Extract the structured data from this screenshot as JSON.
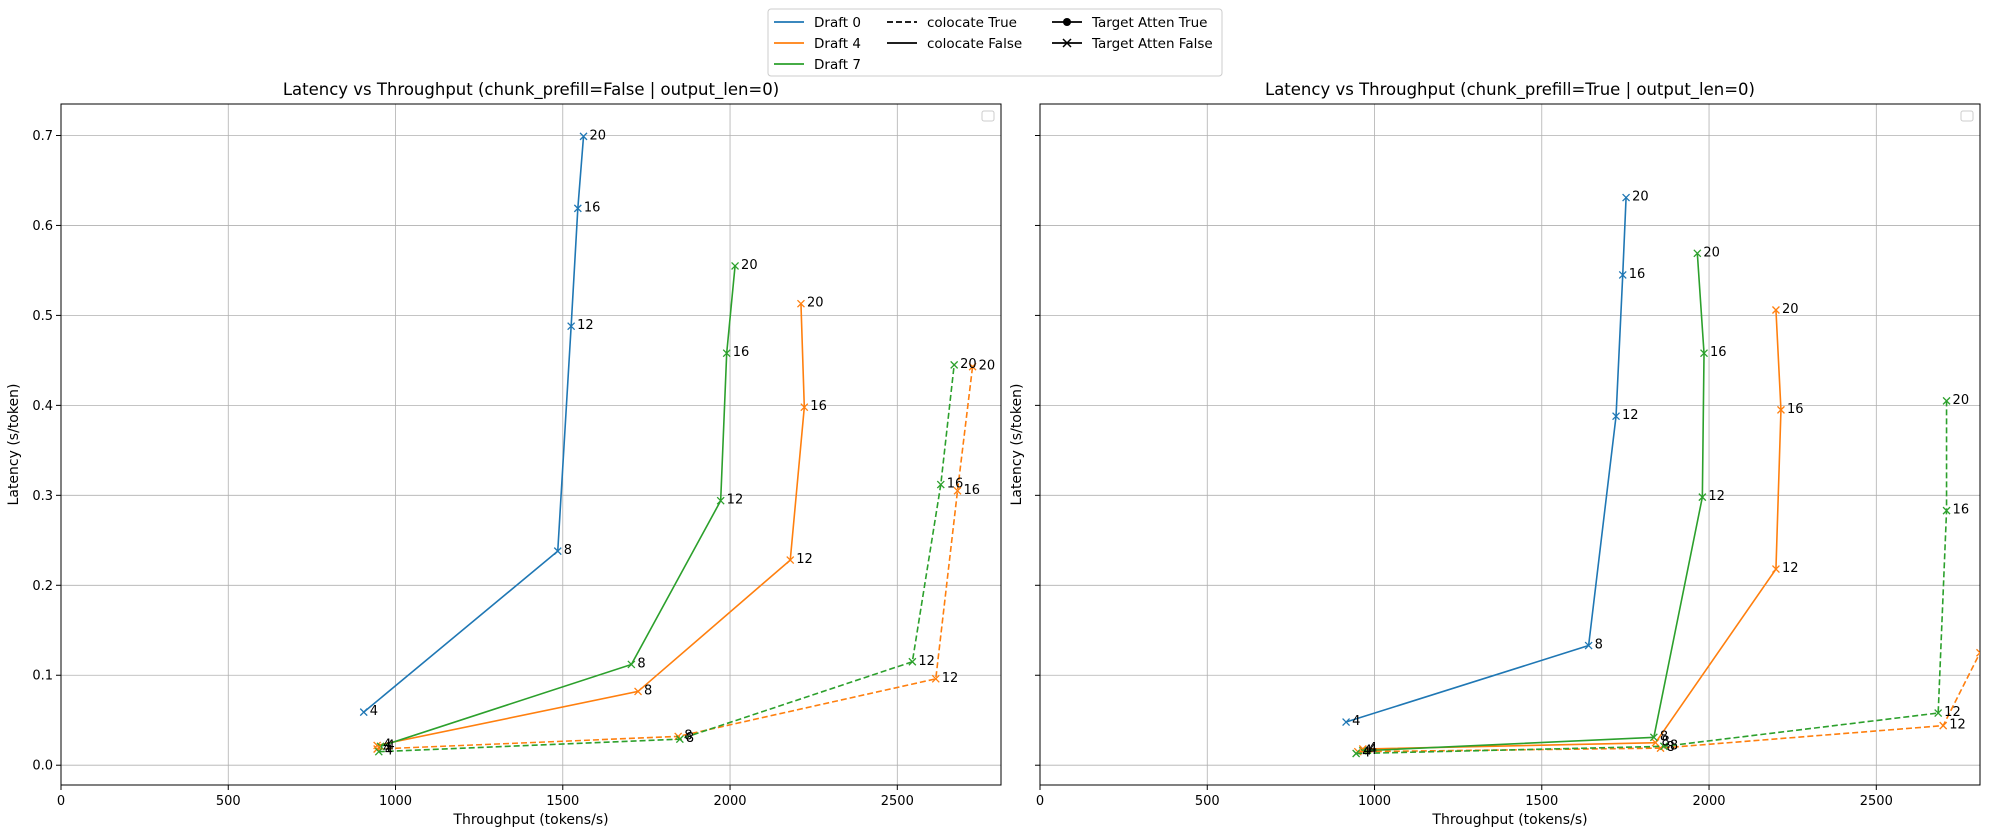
{
  "chart_data": {
    "type": "line",
    "legend": {
      "placement": "top-center",
      "entries": [
        {
          "label": "Draft 0",
          "color": "#1f77b4",
          "kind": "line-solid"
        },
        {
          "label": "Draft 4",
          "color": "#ff7f0e",
          "kind": "line-solid"
        },
        {
          "label": "Draft 7",
          "color": "#2ca02c",
          "kind": "line-solid"
        },
        {
          "label": "colocate True",
          "color": "#000000",
          "kind": "line-dashed"
        },
        {
          "label": "colocate False",
          "color": "#000000",
          "kind": "line-solid"
        },
        {
          "label": "Target Atten True",
          "color": "#000000",
          "kind": "marker-circle"
        },
        {
          "label": "Target Atten False",
          "color": "#000000",
          "kind": "marker-x"
        }
      ]
    },
    "panels": [
      {
        "title": "Latency vs Throughput (chunk_prefill=False | output_len=0)",
        "xlabel": "Throughput (tokens/s)",
        "ylabel": "Latency (s/token)",
        "xlim": [
          0,
          2810
        ],
        "ylim": [
          -0.022,
          0.735
        ],
        "xticks": [
          0,
          500,
          1000,
          1500,
          2000,
          2500
        ],
        "yticks": [
          0.0,
          0.1,
          0.2,
          0.3,
          0.4,
          0.5,
          0.6,
          0.7
        ],
        "ytick_labels": [
          "0.0",
          "0.1",
          "0.2",
          "0.3",
          "0.4",
          "0.5",
          "0.6",
          "0.7"
        ],
        "grid": true,
        "series": [
          {
            "draft": 0,
            "colocate": false,
            "color": "#1f77b4",
            "points": [
              {
                "x": 905,
                "y": 0.059,
                "label": "4"
              },
              {
                "x": 1485,
                "y": 0.238,
                "label": "8"
              },
              {
                "x": 1525,
                "y": 0.488,
                "label": "12"
              },
              {
                "x": 1545,
                "y": 0.619,
                "label": "16"
              },
              {
                "x": 1562,
                "y": 0.699,
                "label": "20"
              }
            ]
          },
          {
            "draft": 4,
            "colocate": false,
            "color": "#ff7f0e",
            "points": [
              {
                "x": 945,
                "y": 0.022,
                "label": "4"
              },
              {
                "x": 1725,
                "y": 0.082,
                "label": "8"
              },
              {
                "x": 2180,
                "y": 0.228,
                "label": "12"
              },
              {
                "x": 2222,
                "y": 0.398,
                "label": "16"
              },
              {
                "x": 2212,
                "y": 0.513,
                "label": "20"
              }
            ]
          },
          {
            "draft": 7,
            "colocate": false,
            "color": "#2ca02c",
            "points": [
              {
                "x": 955,
                "y": 0.021,
                "label": "4"
              },
              {
                "x": 1705,
                "y": 0.112,
                "label": "8"
              },
              {
                "x": 1972,
                "y": 0.294,
                "label": "12"
              },
              {
                "x": 1990,
                "y": 0.458,
                "label": "16"
              },
              {
                "x": 2015,
                "y": 0.555,
                "label": "20"
              }
            ]
          },
          {
            "draft": 4,
            "colocate": true,
            "color": "#ff7f0e",
            "points": [
              {
                "x": 945,
                "y": 0.018,
                "label": "4"
              },
              {
                "x": 1845,
                "y": 0.032,
                "label": "8"
              },
              {
                "x": 2615,
                "y": 0.096,
                "label": "12"
              },
              {
                "x": 2680,
                "y": 0.305,
                "label": "16"
              },
              {
                "x": 2725,
                "y": 0.443,
                "label": "20"
              }
            ]
          },
          {
            "draft": 7,
            "colocate": true,
            "color": "#2ca02c",
            "points": [
              {
                "x": 950,
                "y": 0.015,
                "label": "4"
              },
              {
                "x": 1850,
                "y": 0.029,
                "label": "8"
              },
              {
                "x": 2545,
                "y": 0.115,
                "label": "12"
              },
              {
                "x": 2630,
                "y": 0.312,
                "label": "16"
              },
              {
                "x": 2670,
                "y": 0.445,
                "label": "20"
              }
            ]
          }
        ]
      },
      {
        "title": "Latency vs Throughput (chunk_prefill=True | output_len=0)",
        "xlabel": "Throughput (tokens/s)",
        "ylabel": "Latency (s/token)",
        "xlim": [
          0,
          2810
        ],
        "ylim": [
          -0.022,
          0.735
        ],
        "xticks": [
          0,
          500,
          1000,
          1500,
          2000,
          2500
        ],
        "yticks": [
          0.0,
          0.1,
          0.2,
          0.3,
          0.4,
          0.5,
          0.6,
          0.7
        ],
        "ytick_labels": [
          "",
          "",
          "",
          "",
          "",
          "",
          "",
          ""
        ],
        "grid": true,
        "series": [
          {
            "draft": 0,
            "colocate": false,
            "color": "#1f77b4",
            "points": [
              {
                "x": 915,
                "y": 0.048,
                "label": "4"
              },
              {
                "x": 1640,
                "y": 0.133,
                "label": "8"
              },
              {
                "x": 1722,
                "y": 0.388,
                "label": "12"
              },
              {
                "x": 1742,
                "y": 0.545,
                "label": "16"
              },
              {
                "x": 1752,
                "y": 0.631,
                "label": "20"
              }
            ]
          },
          {
            "draft": 4,
            "colocate": false,
            "color": "#ff7f0e",
            "points": [
              {
                "x": 965,
                "y": 0.018,
                "label": "4"
              },
              {
                "x": 1840,
                "y": 0.025,
                "label": "8"
              },
              {
                "x": 2200,
                "y": 0.218,
                "label": "12"
              },
              {
                "x": 2215,
                "y": 0.395,
                "label": "16"
              },
              {
                "x": 2200,
                "y": 0.506,
                "label": "20"
              }
            ]
          },
          {
            "draft": 7,
            "colocate": false,
            "color": "#2ca02c",
            "points": [
              {
                "x": 965,
                "y": 0.016,
                "label": "4"
              },
              {
                "x": 1835,
                "y": 0.031,
                "label": "8"
              },
              {
                "x": 1980,
                "y": 0.298,
                "label": "12"
              },
              {
                "x": 1985,
                "y": 0.458,
                "label": "16"
              },
              {
                "x": 1965,
                "y": 0.569,
                "label": "20"
              }
            ]
          },
          {
            "draft": 4,
            "colocate": true,
            "color": "#ff7f0e",
            "points": [
              {
                "x": 950,
                "y": 0.015,
                "label": "4"
              },
              {
                "x": 1855,
                "y": 0.019,
                "label": "8"
              },
              {
                "x": 2700,
                "y": 0.044,
                "label": "12"
              },
              {
                "x": 2810,
                "y": 0.125,
                "label": ""
              }
            ]
          },
          {
            "draft": 7,
            "colocate": true,
            "color": "#2ca02c",
            "points": [
              {
                "x": 945,
                "y": 0.013,
                "label": "4"
              },
              {
                "x": 1865,
                "y": 0.021,
                "label": "8"
              },
              {
                "x": 2685,
                "y": 0.058,
                "label": "12"
              },
              {
                "x": 2710,
                "y": 0.283,
                "label": "16"
              },
              {
                "x": 2710,
                "y": 0.405,
                "label": "20"
              }
            ]
          }
        ]
      }
    ]
  }
}
